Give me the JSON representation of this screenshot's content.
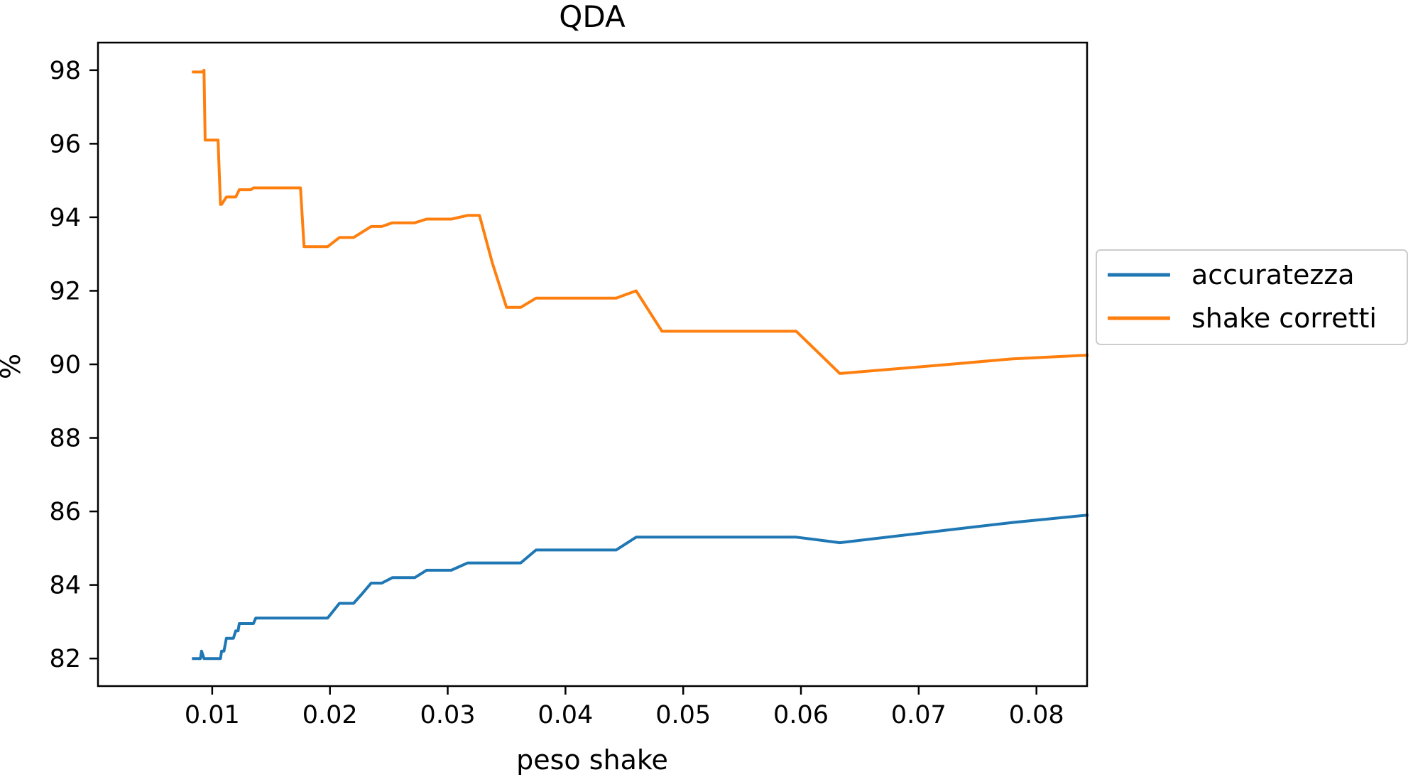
{
  "chart_data": {
    "type": "line",
    "title": "QDA",
    "xlabel": "peso shake",
    "ylabel": "%",
    "xlim": [
      0.0003,
      0.0843
    ],
    "ylim": [
      81.25,
      98.75
    ],
    "x_ticks": [
      0.01,
      0.02,
      0.03,
      0.04,
      0.05,
      0.06,
      0.07,
      0.08
    ],
    "x_tick_labels": [
      "0.01",
      "0.02",
      "0.03",
      "0.04",
      "0.05",
      "0.06",
      "0.07",
      "0.08"
    ],
    "y_ticks": [
      82,
      84,
      86,
      88,
      90,
      92,
      94,
      96,
      98
    ],
    "y_tick_labels": [
      "82",
      "84",
      "86",
      "88",
      "90",
      "92",
      "94",
      "96",
      "98"
    ],
    "grid": false,
    "legend_position": "outside-right",
    "series": [
      {
        "name": "accuratezza",
        "color": "#1f77b4",
        "x": [
          0.0084,
          0.009,
          0.0091,
          0.0093,
          0.0107,
          0.0108,
          0.011,
          0.0112,
          0.0114,
          0.0118,
          0.012,
          0.0122,
          0.0123,
          0.0125,
          0.0135,
          0.0137,
          0.0198,
          0.0208,
          0.022,
          0.0227,
          0.0235,
          0.0244,
          0.0253,
          0.0272,
          0.0282,
          0.0303,
          0.0317,
          0.0362,
          0.0375,
          0.0443,
          0.046,
          0.0596,
          0.0633,
          0.0726,
          0.078,
          0.0843
        ],
        "y": [
          82.0,
          82.0,
          82.2,
          82.0,
          82.0,
          82.2,
          82.2,
          82.55,
          82.55,
          82.55,
          82.75,
          82.75,
          82.95,
          82.95,
          82.95,
          83.1,
          83.1,
          83.5,
          83.5,
          83.75,
          84.05,
          84.05,
          84.2,
          84.2,
          84.4,
          84.4,
          84.6,
          84.6,
          84.95,
          84.95,
          85.3,
          85.3,
          85.15,
          85.5,
          85.7,
          85.9
        ]
      },
      {
        "name": "shake corretti",
        "color": "#ff7f0e",
        "x": [
          0.0084,
          0.0092,
          0.0093,
          0.0094,
          0.0105,
          0.0107,
          0.0108,
          0.0112,
          0.0114,
          0.012,
          0.0123,
          0.0125,
          0.0133,
          0.0135,
          0.0175,
          0.0178,
          0.0198,
          0.0208,
          0.022,
          0.0235,
          0.0244,
          0.0253,
          0.0272,
          0.0282,
          0.0303,
          0.0317,
          0.0327,
          0.0338,
          0.035,
          0.0362,
          0.0375,
          0.0443,
          0.046,
          0.0482,
          0.0596,
          0.0633,
          0.0726,
          0.078,
          0.0843
        ],
        "y": [
          97.95,
          97.95,
          98.0,
          96.1,
          96.1,
          94.35,
          94.35,
          94.55,
          94.55,
          94.55,
          94.75,
          94.75,
          94.75,
          94.8,
          94.8,
          93.2,
          93.2,
          93.45,
          93.45,
          93.75,
          93.75,
          93.85,
          93.85,
          93.95,
          93.95,
          94.05,
          94.05,
          92.75,
          91.55,
          91.55,
          91.8,
          91.8,
          92.0,
          90.9,
          90.9,
          89.75,
          90.0,
          90.15,
          90.25
        ]
      }
    ]
  }
}
